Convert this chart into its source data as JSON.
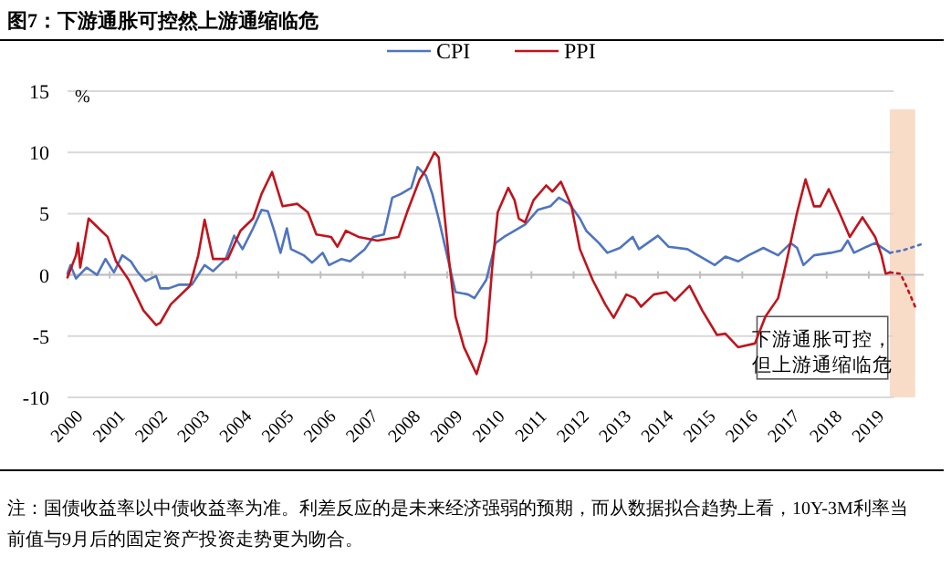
{
  "chart_data": {
    "type": "line",
    "title": "图7：下游通胀可控然上游通缩临危",
    "ylabel": "%",
    "xlim": [
      2000,
      2020.3
    ],
    "ylim": [
      -10,
      15
    ],
    "xticks": [
      {
        "value": 2000,
        "label": "2000"
      },
      {
        "value": 2001,
        "label": "2001"
      },
      {
        "value": 2002,
        "label": "2002"
      },
      {
        "value": 2003,
        "label": "2003"
      },
      {
        "value": 2004,
        "label": "2004"
      },
      {
        "value": 2005,
        "label": "2005"
      },
      {
        "value": 2006,
        "label": "2006"
      },
      {
        "value": 2007,
        "label": "2007"
      },
      {
        "value": 2008,
        "label": "2008"
      },
      {
        "value": 2009,
        "label": "2009"
      },
      {
        "value": 2010,
        "label": "2010"
      },
      {
        "value": 2011,
        "label": "2011"
      },
      {
        "value": 2012,
        "label": "2012"
      },
      {
        "value": 2013,
        "label": "2013"
      },
      {
        "value": 2014,
        "label": "2014"
      },
      {
        "value": 2015,
        "label": "2015"
      },
      {
        "value": 2016,
        "label": "2016"
      },
      {
        "value": 2017,
        "label": "2017"
      },
      {
        "value": 2018,
        "label": "2018"
      },
      {
        "value": 2019,
        "label": "2019"
      }
    ],
    "yticks": [
      -10,
      -5,
      0,
      5,
      10,
      15
    ],
    "grid": "y",
    "legend": "top",
    "series": [
      {
        "name": "CPI",
        "color": "#4f74c0",
        "x": [
          2000,
          2000.07,
          2000.2,
          2000.45,
          2000.7,
          2000.9,
          2001.1,
          2001.3,
          2001.5,
          2001.65,
          2001.85,
          2002.1,
          2002.2,
          2002.4,
          2002.65,
          2002.95,
          2003.25,
          2003.45,
          2003.75,
          2003.95,
          2004.15,
          2004.4,
          2004.6,
          2004.75,
          2004.9,
          2005.05,
          2005.2,
          2005.3,
          2005.6,
          2005.8,
          2006.05,
          2006.2,
          2006.5,
          2006.7,
          2007.05,
          2007.25,
          2007.5,
          2007.7,
          2007.9,
          2008.15,
          2008.3,
          2008.5,
          2008.65,
          2008.8,
          2009,
          2009.2,
          2009.5,
          2009.65,
          2009.93,
          2010.15,
          2010.35,
          2010.6,
          2010.85,
          2011.15,
          2011.45,
          2011.65,
          2011.9,
          2012.15,
          2012.3,
          2012.6,
          2012.8,
          2013.1,
          2013.4,
          2013.55,
          2014,
          2014.25,
          2014.7,
          2015.1,
          2015.35,
          2015.6,
          2015.9,
          2016.15,
          2016.5,
          2016.85,
          2017.15,
          2017.3,
          2017.45,
          2017.7,
          2018.1,
          2018.35,
          2018.5,
          2018.65,
          2018.95,
          2019.15,
          2019.5
        ],
        "values": [
          0.1,
          0.8,
          -0.3,
          0.6,
          0,
          1.3,
          0.2,
          1.6,
          1.1,
          0.3,
          -0.5,
          -0.1,
          -1.1,
          -1.1,
          -0.8,
          -0.8,
          0.8,
          0.3,
          1.3,
          3.2,
          2.1,
          3.8,
          5.3,
          5.2,
          3.6,
          1.8,
          3.8,
          2.1,
          1.6,
          1,
          1.8,
          0.8,
          1.3,
          1.1,
          2.1,
          3.1,
          3.3,
          6.3,
          6.6,
          7.1,
          8.8,
          8.1,
          6.6,
          4.6,
          1.6,
          -1.4,
          -1.6,
          -1.9,
          -0.4,
          2.6,
          3.1,
          3.6,
          4.1,
          5.3,
          5.6,
          6.3,
          5.8,
          4.6,
          3.6,
          2.6,
          1.8,
          2.2,
          3.1,
          2.1,
          3.2,
          2.3,
          2.1,
          1.3,
          0.8,
          1.5,
          1.1,
          1.6,
          2.2,
          1.6,
          2.6,
          2.2,
          0.8,
          1.6,
          1.8,
          2,
          2.8,
          1.8,
          2.3,
          2.6,
          1.8
        ]
      },
      {
        "name": "PPI",
        "color": "#c0141c",
        "x": [
          2000,
          2000.2,
          2000.25,
          2000.3,
          2000.5,
          2000.8,
          2000.95,
          2001.15,
          2001.45,
          2001.8,
          2002.1,
          2002.2,
          2002.45,
          2002.9,
          2003.1,
          2003.25,
          2003.45,
          2003.8,
          2004.1,
          2004.4,
          2004.6,
          2004.85,
          2005.1,
          2005.45,
          2005.7,
          2005.9,
          2006.25,
          2006.4,
          2006.6,
          2006.9,
          2007.35,
          2007.85,
          2008.05,
          2008.35,
          2008.5,
          2008.7,
          2008.8,
          2009.05,
          2009.2,
          2009.4,
          2009.7,
          2009.93,
          2010.07,
          2010.2,
          2010.45,
          2010.6,
          2010.7,
          2010.85,
          2011.05,
          2011.35,
          2011.5,
          2011.7,
          2011.95,
          2012.15,
          2012.45,
          2012.75,
          2012.95,
          2013.25,
          2013.45,
          2013.6,
          2013.9,
          2014.2,
          2014.4,
          2014.75,
          2015.05,
          2015.4,
          2015.6,
          2015.9,
          2016.3,
          2016.55,
          2016.85,
          2017.05,
          2017.3,
          2017.5,
          2017.7,
          2017.85,
          2018.05,
          2018.3,
          2018.55,
          2018.85,
          2019.15,
          2019.3,
          2019.4,
          2019.5
        ],
        "values": [
          -0.2,
          1.6,
          2.6,
          0.6,
          4.6,
          3.6,
          3.1,
          1.1,
          -0.4,
          -2.9,
          -4.1,
          -3.9,
          -2.4,
          -0.9,
          1.6,
          4.5,
          1.3,
          1.3,
          3.6,
          4.6,
          6.6,
          8.4,
          5.6,
          5.8,
          5.1,
          3.3,
          3.1,
          2.3,
          3.6,
          3.1,
          2.8,
          3.1,
          5.1,
          7.8,
          8.6,
          10,
          9.6,
          1.1,
          -3.4,
          -5.9,
          -8.1,
          -5.4,
          0.6,
          5.1,
          7.1,
          6.1,
          4.6,
          4.3,
          6.1,
          7.3,
          6.8,
          7.6,
          5.6,
          2.1,
          -0.4,
          -2.4,
          -3.5,
          -1.6,
          -1.9,
          -2.6,
          -1.6,
          -1.4,
          -2.1,
          -0.9,
          -2.9,
          -4.9,
          -4.8,
          -5.9,
          -5.6,
          -3.4,
          -1.9,
          1.1,
          5.1,
          7.8,
          5.6,
          5.6,
          7,
          5.1,
          3.1,
          4.7,
          3.1,
          1.6,
          0.1,
          0.2
        ]
      },
      {
        "color": "#4f74c0",
        "line_style": "dotted",
        "x": [
          2019.5,
          2019.8,
          2020.25
        ],
        "values": [
          1.8,
          2,
          2.5
        ]
      },
      {
        "color": "#c0141c",
        "line_style": "dotted",
        "x": [
          2019.5,
          2019.75,
          2019.9,
          2020.1
        ],
        "values": [
          0.2,
          0.1,
          -1,
          -2.6
        ]
      }
    ],
    "bands": [
      {
        "axis": "x",
        "from": 2019.5,
        "to": 2020.1,
        "color": "#f9dcc8"
      }
    ],
    "annotations": [
      "下游通胀可控，但上游通缩临危",
      "注：国债收益率以中债收益率为准。利差反应的是未来经济强弱的预期，而从数据拟合趋势上看，10Y-3M利率当前值与9月后的固定资产投资走势更为吻合。"
    ]
  }
}
